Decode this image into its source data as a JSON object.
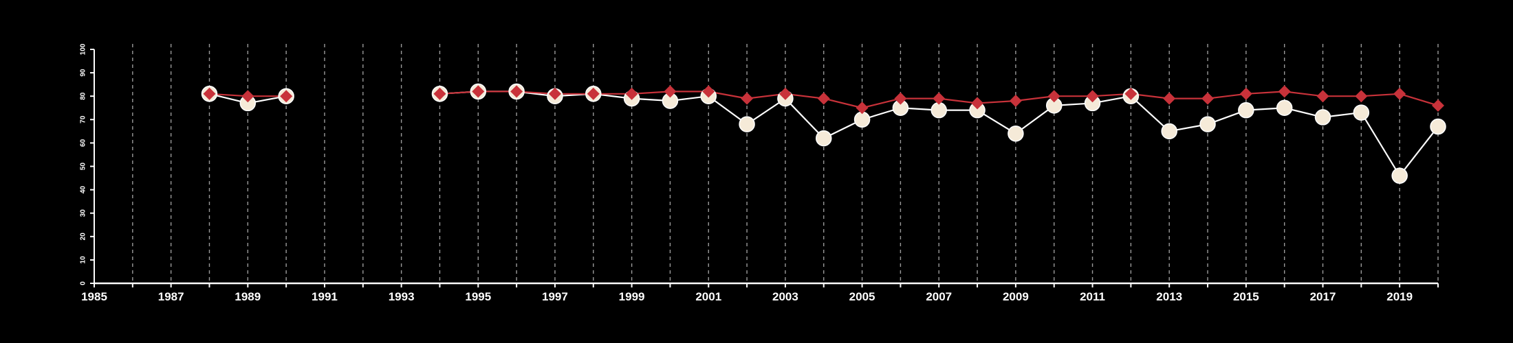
{
  "chart_data": {
    "type": "line",
    "title": "",
    "xlabel": "",
    "ylabel": "",
    "xlim": [
      1985,
      2020
    ],
    "ylim": [
      0,
      100
    ],
    "x_ticks": [
      1985,
      1987,
      1989,
      1991,
      1993,
      1995,
      1997,
      1999,
      2001,
      2003,
      2005,
      2007,
      2009,
      2011,
      2013,
      2015,
      2017,
      2019
    ],
    "y_ticks": [
      0,
      10,
      20,
      30,
      40,
      50,
      60,
      70,
      80,
      90,
      100
    ],
    "vertical_gridlines": "dashed, every year",
    "x": [
      1985,
      1986,
      1987,
      1988,
      1989,
      1990,
      1991,
      1992,
      1993,
      1994,
      1995,
      1996,
      1997,
      1998,
      1999,
      2000,
      2001,
      2002,
      2003,
      2004,
      2005,
      2006,
      2007,
      2008,
      2009,
      2010,
      2011,
      2012,
      2013,
      2014,
      2015,
      2016,
      2017,
      2018,
      2019,
      2020
    ],
    "series": [
      {
        "marker": "diamond",
        "color": "#c8323a",
        "values": [
          null,
          null,
          null,
          81,
          80,
          80,
          null,
          null,
          null,
          81,
          82,
          82,
          81,
          81,
          81,
          82,
          82,
          79,
          81,
          79,
          75,
          79,
          79,
          77,
          78,
          80,
          80,
          81,
          79,
          79,
          81,
          82,
          80,
          80,
          81,
          76
        ]
      },
      {
        "marker": "circle",
        "color": "#f5ead8",
        "values": [
          null,
          null,
          null,
          81,
          77,
          80,
          null,
          null,
          null,
          81,
          82,
          82,
          80,
          81,
          79,
          78,
          80,
          68,
          79,
          62,
          70,
          75,
          74,
          74,
          64,
          76,
          77,
          80,
          65,
          68,
          74,
          75,
          71,
          73,
          46,
          67
        ]
      }
    ]
  }
}
